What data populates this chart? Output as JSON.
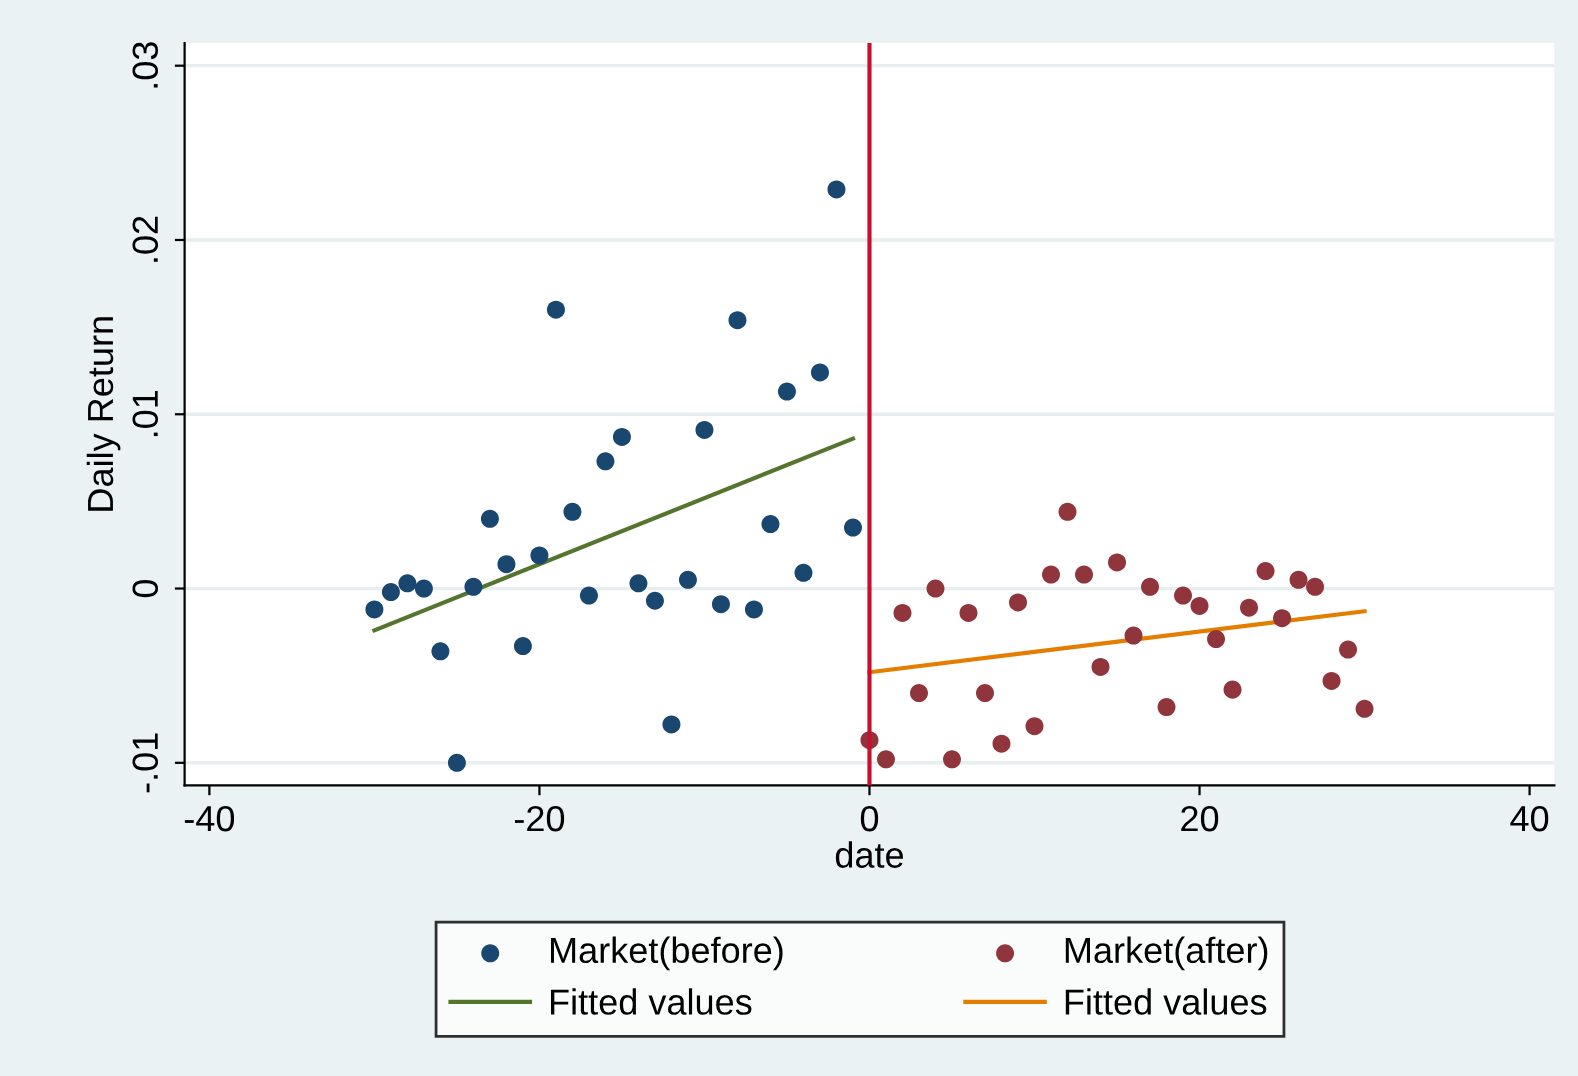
{
  "chart_data": {
    "type": "scatter",
    "xlabel": "date",
    "ylabel": "Daily Return",
    "xlim": [
      -41.5,
      41.5
    ],
    "xticks": [
      -40,
      -20,
      0,
      20,
      40
    ],
    "ylim": [
      -0.0113,
      0.0313
    ],
    "yticks": [
      {
        "value": -0.01,
        "label": "-.01"
      },
      {
        "value": 0,
        "label": "0"
      },
      {
        "value": 0.01,
        "label": ".01"
      },
      {
        "value": 0.02,
        "label": ".02"
      },
      {
        "value": 0.03,
        "label": ".03"
      }
    ],
    "grid": "y",
    "legend": "bottom",
    "ref_lines": [
      {
        "axis": "x",
        "value": 0,
        "label": null,
        "color": "#c8102e"
      }
    ],
    "series": [
      {
        "name": "Market(before)",
        "marker": "circle",
        "color": "#1a476f",
        "x": [
          -30,
          -29,
          -28,
          -27,
          -26,
          -25,
          -24,
          -23,
          -22,
          -21,
          -20,
          -19,
          -18,
          -17,
          -16,
          -15,
          -14,
          -13,
          -12,
          -11,
          -10,
          -9,
          -8,
          -7,
          -6,
          -5,
          -4,
          -3,
          -2,
          -1
        ],
        "values": [
          -0.0012,
          -0.0002,
          0.0003,
          0.0,
          -0.0036,
          -0.01,
          0.0001,
          0.004,
          0.0014,
          -0.0033,
          0.0019,
          0.016,
          0.0044,
          -0.0004,
          0.0073,
          0.0087,
          0.0003,
          -0.0007,
          -0.0078,
          0.0005,
          0.0091,
          -0.0009,
          0.0154,
          -0.0012,
          0.0037,
          0.0113,
          0.0009,
          0.0124,
          0.0229,
          0.0035
        ]
      },
      {
        "name": "Fitted values",
        "type": "line",
        "color": "#55752f",
        "x": [
          -30,
          -1
        ],
        "values": [
          -0.0024,
          0.0086
        ]
      },
      {
        "name": "Market(after)",
        "marker": "circle",
        "color": "#90353b",
        "x": [
          0,
          1,
          2,
          3,
          4,
          5,
          6,
          7,
          8,
          9,
          10,
          11,
          12,
          13,
          14,
          15,
          16,
          17,
          18,
          19,
          20,
          21,
          22,
          23,
          24,
          25,
          26,
          27,
          28,
          29,
          30
        ],
        "values": [
          -0.0087,
          -0.0098,
          -0.0014,
          -0.006,
          0.0,
          -0.0098,
          -0.0014,
          -0.006,
          -0.0089,
          -0.0008,
          -0.0079,
          0.0008,
          0.0044,
          0.0008,
          -0.0045,
          0.0015,
          -0.0027,
          0.0001,
          -0.0068,
          -0.0004,
          -0.001,
          -0.0029,
          -0.0058,
          -0.0011,
          0.001,
          -0.0017,
          0.0005,
          0.0001,
          -0.0053,
          -0.0035,
          -0.0069
        ]
      },
      {
        "name": "Fitted values",
        "type": "line",
        "color": "#e37e00",
        "x": [
          0,
          30
        ],
        "values": [
          -0.0048,
          -0.0013
        ]
      }
    ]
  }
}
